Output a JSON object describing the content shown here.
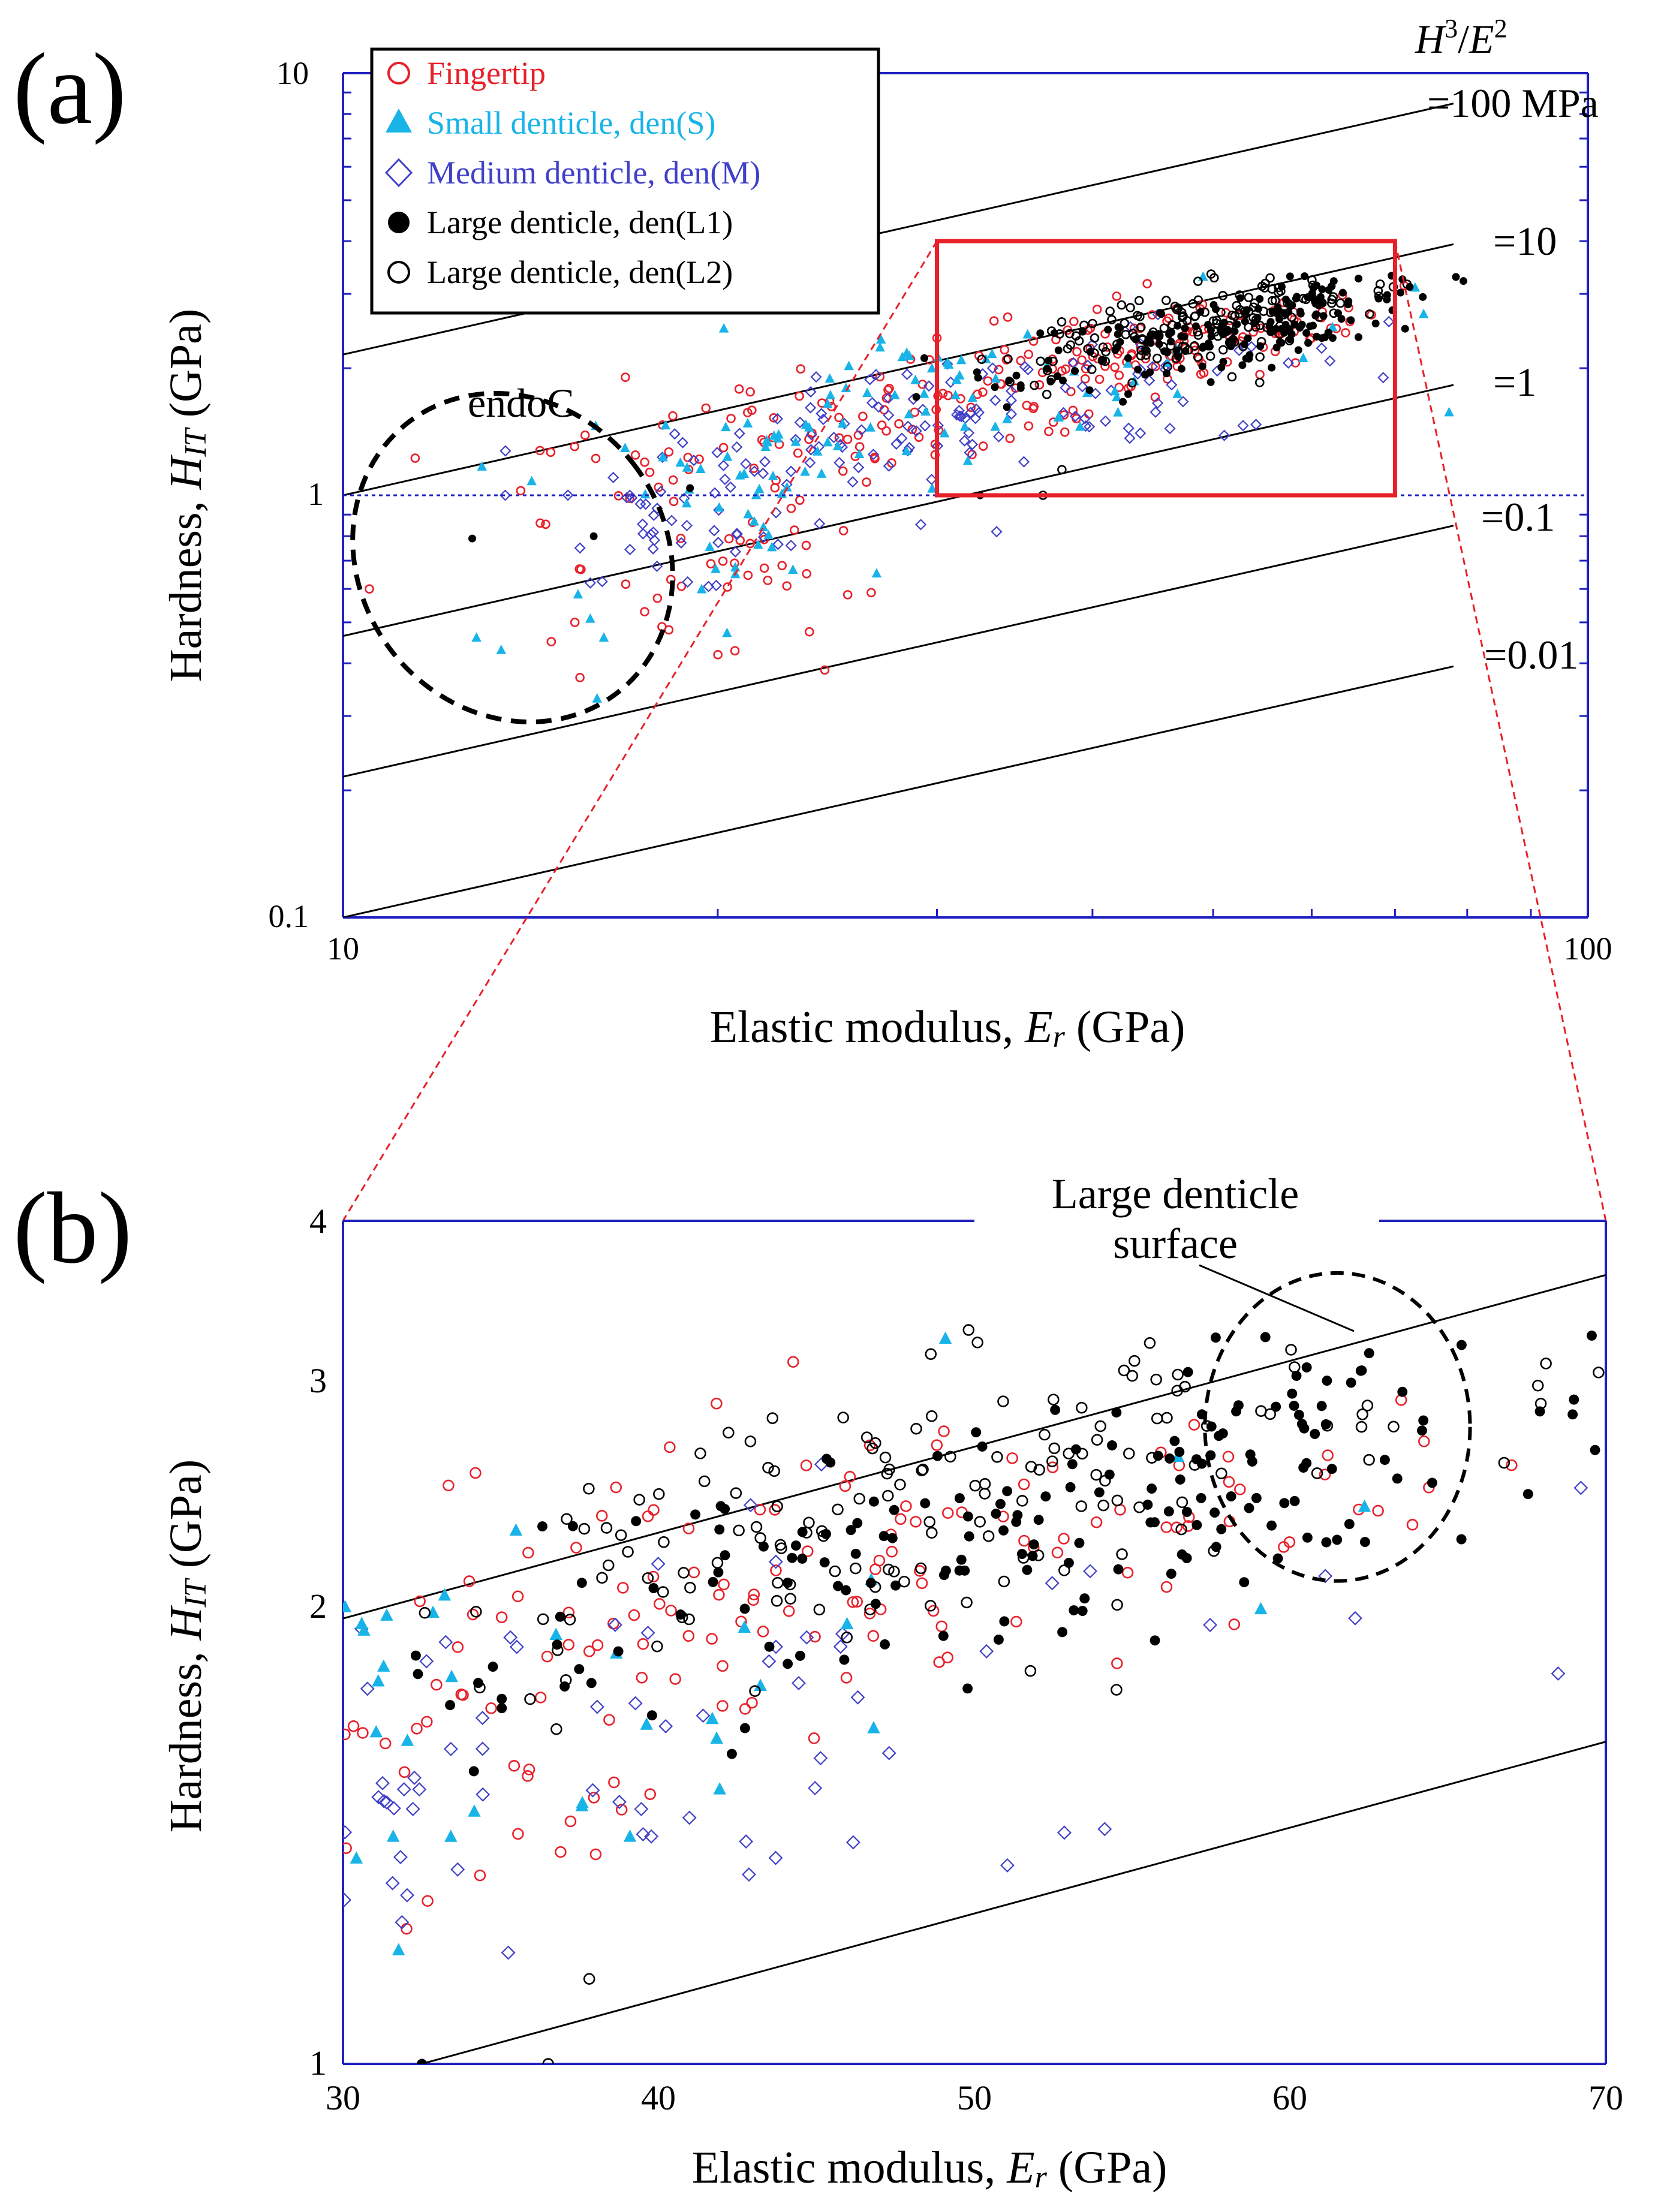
{
  "colors": {
    "fingertip": "#e8202a",
    "small": "#18b4e8",
    "medium": "#4040c8",
    "large": "#000000",
    "axis": "#2020c0",
    "zoom": "#e8202a"
  },
  "panel_a": {
    "label": "(a)",
    "legend": [
      {
        "key": "fingertip",
        "label": "Fingertip"
      },
      {
        "key": "small",
        "label": "Small denticle, den(S)"
      },
      {
        "key": "medium",
        "label": "Medium denticle, den(M)"
      },
      {
        "key": "large1",
        "label": "Large denticle, den(L1)"
      },
      {
        "key": "large2",
        "label": "Large denticle, den(L2)"
      }
    ],
    "ratio_header": {
      "h": "H",
      "e": "E",
      "exp3": "3",
      "exp2": "2",
      "slash": "/",
      "value": "=100 MPa"
    },
    "ratio_labels": [
      "=10",
      "=1",
      "=0.1",
      "=0.01"
    ],
    "endo_label": "endoC"
  },
  "panel_b": {
    "label": "(b)",
    "callout": [
      "Large denticle",
      "surface"
    ]
  },
  "chart_data": [
    {
      "type": "scatter",
      "panel": "a",
      "xscale": "log",
      "yscale": "log",
      "xlim": [
        10,
        100
      ],
      "ylim": [
        0.1,
        10
      ],
      "xticks": [
        "10",
        "100"
      ],
      "yticks": [
        "0.1",
        "1",
        "10"
      ],
      "xlabel": {
        "pre": "Elastic modulus, ",
        "sym": "E",
        "sub": "r",
        "post": " (GPa)"
      },
      "ylabel": {
        "pre": "Hardness, ",
        "sym": "H",
        "sub": "IT",
        "post": " (GPa)"
      },
      "reference_lines": {
        "formula": "H^3/E^2",
        "values_mpa": [
          100,
          10,
          1,
          0.1,
          0.01
        ]
      },
      "zoom_box": {
        "x": [
          30,
          70
        ],
        "y": [
          1,
          4
        ]
      },
      "series": [
        {
          "name": "Fingertip",
          "clusters": [
            {
              "ex": 30,
              "ey": 1.65,
              "sx": 0.28,
              "sy": 0.22,
              "n": 150,
              "rho": 0.78
            },
            {
              "ex": 50,
              "ey": 2.35,
              "sx": 0.14,
              "sy": 0.1,
              "n": 70,
              "rho": 0.6
            },
            {
              "ex": 20.5,
              "ey": 0.7,
              "sx": 0.1,
              "sy": 0.18,
              "n": 40,
              "rho": 0.3
            }
          ],
          "points": [
            [
              10.5,
              0.6
            ],
            [
              15.5,
              0.37
            ],
            [
              14.7,
              0.45
            ]
          ]
        },
        {
          "name": "Small denticle, den(S)",
          "clusters": [
            {
              "ex": 28,
              "ey": 1.6,
              "sx": 0.3,
              "sy": 0.25,
              "n": 90,
              "rho": 0.7
            },
            {
              "ex": 20.5,
              "ey": 0.75,
              "sx": 0.08,
              "sy": 0.22,
              "n": 25,
              "rho": 0.3
            }
          ],
          "points": [
            [
              12.8,
              0.46
            ],
            [
              13.4,
              0.43
            ],
            [
              15.8,
              0.51
            ],
            [
              16.0,
              0.33
            ],
            [
              16.2,
              0.46
            ],
            [
              20.3,
              1.45
            ]
          ]
        },
        {
          "name": "Medium denticle, den(M)",
          "clusters": [
            {
              "ex": 32,
              "ey": 1.6,
              "sx": 0.3,
              "sy": 0.22,
              "n": 130,
              "rho": 0.75
            },
            {
              "ex": 20.5,
              "ey": 0.85,
              "sx": 0.1,
              "sy": 0.15,
              "n": 35,
              "rho": 0.3
            }
          ],
          "points": [
            [
              13.5,
              1.0
            ],
            [
              15.5,
              0.75
            ],
            [
              17.0,
              1.0
            ],
            [
              18.0,
              1.02
            ],
            [
              15.8,
              0.62
            ],
            [
              33.5,
              0.82
            ]
          ]
        },
        {
          "name": "Large denticle, den(L1)",
          "clusters": [
            {
              "ex": 50,
              "ey": 2.4,
              "sx": 0.15,
              "sy": 0.12,
              "n": 160,
              "rho": 0.72
            },
            {
              "ex": 59.5,
              "ey": 2.75,
              "sx": 0.04,
              "sy": 0.08,
              "n": 30,
              "rho": 0.3
            }
          ],
          "points": [
            [
              12.7,
              0.79
            ],
            [
              15.9,
              0.8
            ],
            [
              19.0,
              1.04
            ],
            [
              32.5,
              1.0
            ],
            [
              63.0,
              2.7
            ],
            [
              64.5,
              2.6
            ],
            [
              61.0,
              2.95
            ],
            [
              60.2,
              3.1
            ]
          ]
        },
        {
          "name": "Large denticle, den(L2)",
          "clusters": [
            {
              "ex": 49,
              "ey": 2.5,
              "sx": 0.15,
              "sy": 0.12,
              "n": 150,
              "rho": 0.72
            }
          ],
          "points": [
            [
              36.5,
              1.0
            ],
            [
              54.5,
              1.85
            ],
            [
              55.0,
              3.1
            ],
            [
              62.5,
              2.7
            ],
            [
              37.8,
              1.15
            ]
          ]
        }
      ]
    },
    {
      "type": "scatter",
      "panel": "b",
      "xscale": "linear",
      "yscale": "log",
      "xlim": [
        30,
        70
      ],
      "ylim": [
        1,
        4
      ],
      "xticks": [
        "30",
        "40",
        "50",
        "60",
        "70"
      ],
      "yticks": [
        "1",
        "2",
        "3",
        "4"
      ],
      "xlabel": {
        "pre": "Elastic modulus, ",
        "sym": "E",
        "sub": "r",
        "post": " (GPa)"
      },
      "ylabel": {
        "pre": "Hardness, ",
        "sym": "H",
        "sub": "IT",
        "post": " (GPa)"
      },
      "reference_lines": {
        "formula": "H^3/E^2",
        "values_mpa": [
          10,
          1
        ]
      },
      "highlight": {
        "label": "Large denticle surface",
        "center": [
          61.5,
          2.85
        ],
        "rx": 4.2,
        "ry_log": 0.11
      }
    }
  ]
}
